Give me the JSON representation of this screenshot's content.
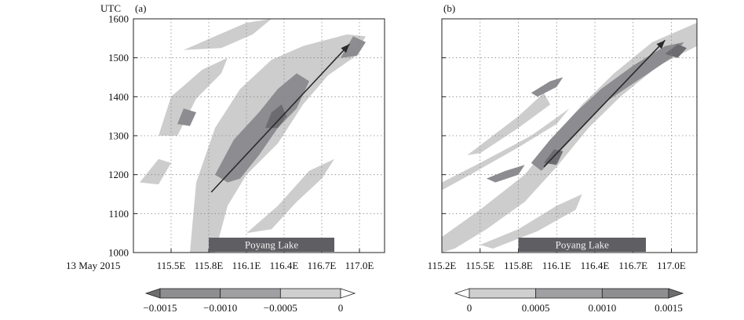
{
  "figure": {
    "date_label": "13 May 2015",
    "y_axis_title": "UTC"
  },
  "chart_data": [
    {
      "type": "heatmap",
      "panel_label": "(a)",
      "x_ticks": [
        "115.5E",
        "115.8E",
        "116.1E",
        "116.4E",
        "116.7E",
        "117.0E"
      ],
      "x_tick_values": [
        115.5,
        115.8,
        116.1,
        116.4,
        116.7,
        117.0
      ],
      "xlim": [
        115.2,
        117.2
      ],
      "y_ticks": [
        "1000",
        "1100",
        "1200",
        "1300",
        "1400",
        "1500",
        "1600"
      ],
      "y_tick_values": [
        1000,
        1100,
        1200,
        1300,
        1400,
        1500,
        1600
      ],
      "ylim": [
        1000,
        1600
      ],
      "grid": true,
      "annotation": {
        "text": "Poyang Lake",
        "x_start": 115.8,
        "x_end": 116.8
      },
      "arrow": {
        "from": [
          115.82,
          1155
        ],
        "to": [
          116.92,
          1535
        ]
      },
      "colorbar": {
        "ticks": [
          "−0.0015",
          "−0.0010",
          "−0.0005",
          "0"
        ],
        "colors": [
          "#6e6e6e",
          "#8e8e90",
          "#a0a0a3",
          "#cfcfcf",
          "#ffffff"
        ]
      },
      "bands": [
        {
          "level": 1,
          "pts": [
            [
              115.65,
              1000
            ],
            [
              115.7,
              1180
            ],
            [
              115.85,
              1320
            ],
            [
              116.05,
              1420
            ],
            [
              116.3,
              1495
            ],
            [
              116.55,
              1530
            ],
            [
              116.9,
              1560
            ],
            [
              117.05,
              1555
            ],
            [
              116.95,
              1500
            ],
            [
              116.75,
              1455
            ],
            [
              116.55,
              1380
            ],
            [
              116.35,
              1280
            ],
            [
              116.1,
              1200
            ],
            [
              115.95,
              1120
            ],
            [
              115.85,
              1000
            ]
          ]
        },
        {
          "level": 1,
          "pts": [
            [
              115.4,
              1300
            ],
            [
              115.5,
              1400
            ],
            [
              115.75,
              1470
            ],
            [
              115.95,
              1500
            ],
            [
              115.9,
              1460
            ],
            [
              115.7,
              1395
            ],
            [
              115.55,
              1300
            ]
          ]
        },
        {
          "level": 1,
          "pts": [
            [
              115.6,
              1520
            ],
            [
              115.85,
              1555
            ],
            [
              116.1,
              1590
            ],
            [
              116.3,
              1600
            ],
            [
              116.15,
              1560
            ],
            [
              115.9,
              1525
            ]
          ]
        },
        {
          "level": 1,
          "pts": [
            [
              116.1,
              1050
            ],
            [
              116.35,
              1120
            ],
            [
              116.6,
              1210
            ],
            [
              116.8,
              1240
            ],
            [
              116.7,
              1190
            ],
            [
              116.5,
              1130
            ],
            [
              116.3,
              1060
            ]
          ]
        },
        {
          "level": 1,
          "pts": [
            [
              115.25,
              1180
            ],
            [
              115.4,
              1240
            ],
            [
              115.5,
              1230
            ],
            [
              115.4,
              1175
            ]
          ]
        },
        {
          "level": 2,
          "pts": [
            [
              115.85,
              1200
            ],
            [
              116.0,
              1290
            ],
            [
              116.2,
              1360
            ],
            [
              116.35,
              1420
            ],
            [
              116.5,
              1460
            ],
            [
              116.6,
              1440
            ],
            [
              116.5,
              1370
            ],
            [
              116.35,
              1320
            ],
            [
              116.2,
              1250
            ],
            [
              116.05,
              1190
            ],
            [
              115.95,
              1180
            ]
          ]
        },
        {
          "level": 2,
          "pts": [
            [
              116.85,
              1500
            ],
            [
              116.95,
              1555
            ],
            [
              117.05,
              1540
            ],
            [
              116.98,
              1505
            ]
          ]
        },
        {
          "level": 2,
          "pts": [
            [
              115.55,
              1330
            ],
            [
              115.6,
              1370
            ],
            [
              115.7,
              1360
            ],
            [
              115.65,
              1325
            ]
          ]
        },
        {
          "level": 3,
          "pts": [
            [
              116.25,
              1320
            ],
            [
              116.3,
              1360
            ],
            [
              116.38,
              1380
            ],
            [
              116.42,
              1350
            ],
            [
              116.35,
              1320
            ]
          ]
        }
      ]
    },
    {
      "type": "heatmap",
      "panel_label": "(b)",
      "x_ticks": [
        "115.2E",
        "115.5E",
        "115.8E",
        "116.1E",
        "116.4E",
        "116.7E",
        "117.0E"
      ],
      "x_tick_values": [
        115.2,
        115.5,
        115.8,
        116.1,
        116.4,
        116.7,
        117.0
      ],
      "xlim": [
        115.2,
        117.2
      ],
      "y_ticks": [
        "1000",
        "1100",
        "1200",
        "1300",
        "1400",
        "1500",
        "1600"
      ],
      "y_tick_values": [
        1000,
        1100,
        1200,
        1300,
        1400,
        1500,
        1600
      ],
      "ylim": [
        1000,
        1600
      ],
      "grid": true,
      "annotation": {
        "text": "Poyang Lake",
        "x_start": 115.8,
        "x_end": 116.8
      },
      "arrow": {
        "from": [
          116.0,
          1220
        ],
        "to": [
          116.95,
          1545
        ]
      },
      "colorbar": {
        "ticks": [
          "0",
          "0.0005",
          "0.0010",
          "0.0015"
        ],
        "colors": [
          "#ffffff",
          "#cfcfcf",
          "#a0a0a3",
          "#8e8e90",
          "#6e6e6e"
        ]
      },
      "bands": [
        {
          "level": 1,
          "pts": [
            [
              115.2,
              1040
            ],
            [
              115.5,
              1110
            ],
            [
              115.85,
              1200
            ],
            [
              116.05,
              1280
            ],
            [
              116.3,
              1380
            ],
            [
              116.55,
              1460
            ],
            [
              116.85,
              1540
            ],
            [
              117.2,
              1590
            ],
            [
              117.2,
              1530
            ],
            [
              116.9,
              1480
            ],
            [
              116.6,
              1400
            ],
            [
              116.35,
              1320
            ],
            [
              116.1,
              1220
            ],
            [
              115.85,
              1130
            ],
            [
              115.55,
              1060
            ],
            [
              115.3,
              1010
            ],
            [
              115.2,
              1000
            ]
          ]
        },
        {
          "level": 1,
          "pts": [
            [
              115.2,
              1180
            ],
            [
              115.5,
              1230
            ],
            [
              115.9,
              1300
            ],
            [
              116.2,
              1370
            ],
            [
              116.1,
              1330
            ],
            [
              115.8,
              1270
            ],
            [
              115.45,
              1205
            ],
            [
              115.2,
              1160
            ]
          ]
        },
        {
          "level": 1,
          "pts": [
            [
              115.4,
              1250
            ],
            [
              115.8,
              1350
            ],
            [
              116.0,
              1410
            ],
            [
              116.05,
              1380
            ],
            [
              115.8,
              1320
            ],
            [
              115.5,
              1255
            ]
          ]
        },
        {
          "level": 1,
          "pts": [
            [
              115.5,
              1020
            ],
            [
              115.8,
              1060
            ],
            [
              116.1,
              1120
            ],
            [
              116.3,
              1150
            ],
            [
              116.25,
              1110
            ],
            [
              115.95,
              1055
            ],
            [
              115.6,
              1010
            ]
          ]
        },
        {
          "level": 2,
          "pts": [
            [
              115.9,
              1230
            ],
            [
              116.05,
              1290
            ],
            [
              116.25,
              1360
            ],
            [
              116.45,
              1420
            ],
            [
              116.7,
              1480
            ],
            [
              116.95,
              1530
            ],
            [
              117.1,
              1540
            ],
            [
              117.0,
              1500
            ],
            [
              116.75,
              1445
            ],
            [
              116.5,
              1390
            ],
            [
              116.3,
              1320
            ],
            [
              116.1,
              1250
            ],
            [
              115.98,
              1210
            ]
          ]
        },
        {
          "level": 2,
          "pts": [
            [
              115.55,
              1190
            ],
            [
              115.7,
              1210
            ],
            [
              115.85,
              1225
            ],
            [
              115.8,
              1200
            ],
            [
              115.62,
              1180
            ]
          ]
        },
        {
          "level": 2,
          "pts": [
            [
              115.9,
              1410
            ],
            [
              116.05,
              1440
            ],
            [
              116.15,
              1450
            ],
            [
              116.1,
              1425
            ],
            [
              115.95,
              1400
            ]
          ]
        },
        {
          "level": 3,
          "pts": [
            [
              116.0,
              1230
            ],
            [
              116.08,
              1265
            ],
            [
              116.15,
              1260
            ],
            [
              116.1,
              1225
            ]
          ]
        },
        {
          "level": 3,
          "pts": [
            [
              116.95,
              1510
            ],
            [
              117.05,
              1535
            ],
            [
              117.12,
              1525
            ],
            [
              117.05,
              1500
            ]
          ]
        }
      ]
    }
  ]
}
